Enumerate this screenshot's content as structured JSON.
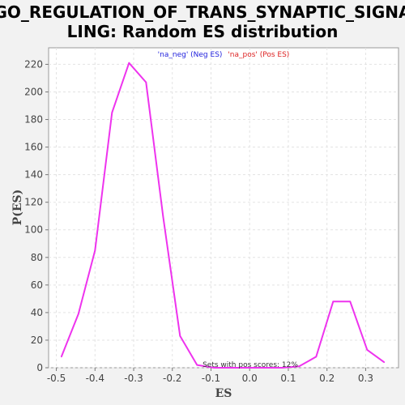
{
  "chart_data": {
    "type": "line",
    "title_line1": "GO_REGULATION_OF_TRANS_SYNAPTIC_SIGNA",
    "title_line2": "LING: Random ES distribution",
    "xlabel": "ES",
    "ylabel": "P(ES)",
    "xlim": [
      -0.52,
      0.385
    ],
    "ylim": [
      0,
      232
    ],
    "xticks": [
      -0.5,
      -0.4,
      -0.3,
      -0.2,
      -0.1,
      0.0,
      0.1,
      0.2,
      0.3
    ],
    "xtick_labels": [
      "-0.5",
      "-0.4",
      "-0.3",
      "-0.2",
      "-0.1",
      "0.0",
      "0.1",
      "0.2",
      "0.3"
    ],
    "yticks": [
      0,
      20,
      40,
      60,
      80,
      100,
      120,
      140,
      160,
      180,
      200,
      220
    ],
    "ytick_labels": [
      "0",
      "20",
      "40",
      "60",
      "80",
      "100",
      "120",
      "140",
      "160",
      "180",
      "200",
      "220"
    ],
    "grid": true,
    "legend": {
      "placement": "top-center",
      "entries": [
        {
          "label": "'na_neg' (Neg ES)",
          "color": "#2222dd"
        },
        {
          "label": "'na_pos' (Pos ES)",
          "color": "#dd2222"
        }
      ]
    },
    "annotation": "Sets with pos scores: 12%",
    "series": [
      {
        "color": "#ee33ee",
        "x": [
          -0.487,
          -0.443,
          -0.4,
          -0.356,
          -0.312,
          -0.268,
          -0.224,
          -0.18,
          -0.136,
          -0.092,
          -0.048,
          -0.004,
          0.04,
          0.084,
          0.128,
          0.172,
          0.216,
          0.26,
          0.304,
          0.348
        ],
        "y": [
          8,
          39,
          85,
          185,
          221,
          207,
          110,
          23,
          2,
          0,
          0,
          0,
          0,
          0,
          1,
          8,
          48,
          48,
          13,
          4
        ]
      }
    ]
  }
}
